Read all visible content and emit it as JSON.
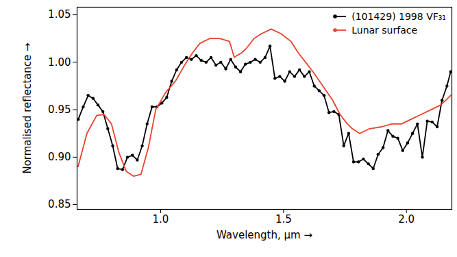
{
  "chart_data": {
    "type": "line",
    "x_label": "Wavelength, µm",
    "y_label": "Normalised reflectance",
    "xlim": [
      0.66,
      2.185
    ],
    "xticks": [
      {
        "value": 1.0,
        "label": "1.0"
      },
      {
        "value": 1.5,
        "label": "1.5"
      },
      {
        "value": 2.0,
        "label": "2.0"
      }
    ],
    "ylim": [
      0.845,
      1.058
    ],
    "yticks": [
      0.85,
      {
        "value": 0.9,
        "label": "0.90"
      },
      0.95,
      {
        "value": 1.0,
        "label": "1.00"
      },
      1.05
    ],
    "legend": "top-right",
    "series": [
      {
        "name": "(101429) 1998 VF₃₁",
        "color": "#000000",
        "marker": "circle",
        "line_style": "solid",
        "x": [
          0.665,
          0.685,
          0.705,
          0.725,
          0.745,
          0.765,
          0.785,
          0.805,
          0.825,
          0.845,
          0.865,
          0.885,
          0.905,
          0.925,
          0.945,
          0.965,
          0.985,
          1.005,
          1.025,
          1.045,
          1.065,
          1.085,
          1.105,
          1.125,
          1.145,
          1.165,
          1.185,
          1.205,
          1.225,
          1.245,
          1.265,
          1.285,
          1.305,
          1.325,
          1.345,
          1.365,
          1.385,
          1.405,
          1.425,
          1.445,
          1.465,
          1.485,
          1.505,
          1.525,
          1.545,
          1.565,
          1.585,
          1.605,
          1.625,
          1.645,
          1.665,
          1.685,
          1.705,
          1.725,
          1.745,
          1.765,
          1.785,
          1.805,
          1.825,
          1.845,
          1.865,
          1.885,
          1.905,
          1.925,
          1.945,
          1.965,
          1.985,
          2.005,
          2.025,
          2.045,
          2.065,
          2.085,
          2.105,
          2.125,
          2.145,
          2.165,
          2.18
        ],
        "values": [
          0.94,
          0.953,
          0.965,
          0.962,
          0.955,
          0.948,
          0.93,
          0.912,
          0.888,
          0.887,
          0.9,
          0.902,
          0.897,
          0.912,
          0.935,
          0.953,
          0.953,
          0.957,
          0.963,
          0.98,
          0.992,
          1.0,
          1.005,
          1.003,
          1.007,
          1.002,
          1.0,
          1.005,
          0.997,
          1.0,
          0.993,
          1.003,
          0.995,
          0.99,
          0.998,
          1.0,
          1.003,
          1.0,
          1.005,
          1.017,
          0.983,
          0.985,
          0.98,
          0.99,
          0.985,
          0.992,
          0.985,
          0.99,
          0.975,
          0.97,
          0.965,
          0.947,
          0.948,
          0.945,
          0.912,
          0.925,
          0.895,
          0.895,
          0.898,
          0.893,
          0.888,
          0.903,
          0.91,
          0.928,
          0.922,
          0.92,
          0.907,
          0.915,
          0.925,
          0.935,
          0.9,
          0.938,
          0.937,
          0.932,
          0.96,
          0.975,
          0.99
        ]
      },
      {
        "name": "Lunar surface",
        "color": "#e8432f",
        "line_style": "solid",
        "x": [
          0.664,
          0.7,
          0.74,
          0.77,
          0.8,
          0.83,
          0.86,
          0.89,
          0.92,
          0.95,
          0.98,
          1.02,
          1.06,
          1.1,
          1.13,
          1.16,
          1.2,
          1.24,
          1.28,
          1.3,
          1.31,
          1.33,
          1.35,
          1.38,
          1.41,
          1.45,
          1.49,
          1.53,
          1.56,
          1.59,
          1.62,
          1.66,
          1.7,
          1.73,
          1.76,
          1.78,
          1.81,
          1.85,
          1.9,
          1.94,
          1.98,
          2.02,
          2.06,
          2.1,
          2.14,
          2.18
        ],
        "values": [
          0.89,
          0.925,
          0.944,
          0.945,
          0.935,
          0.905,
          0.885,
          0.88,
          0.882,
          0.91,
          0.95,
          0.968,
          0.98,
          0.998,
          1.01,
          1.02,
          1.025,
          1.025,
          1.022,
          1.005,
          1.007,
          1.01,
          1.015,
          1.025,
          1.03,
          1.035,
          1.03,
          1.022,
          1.01,
          1.0,
          0.99,
          0.975,
          0.96,
          0.945,
          0.935,
          0.93,
          0.925,
          0.93,
          0.932,
          0.935,
          0.935,
          0.94,
          0.945,
          0.95,
          0.955,
          0.965
        ]
      }
    ]
  }
}
